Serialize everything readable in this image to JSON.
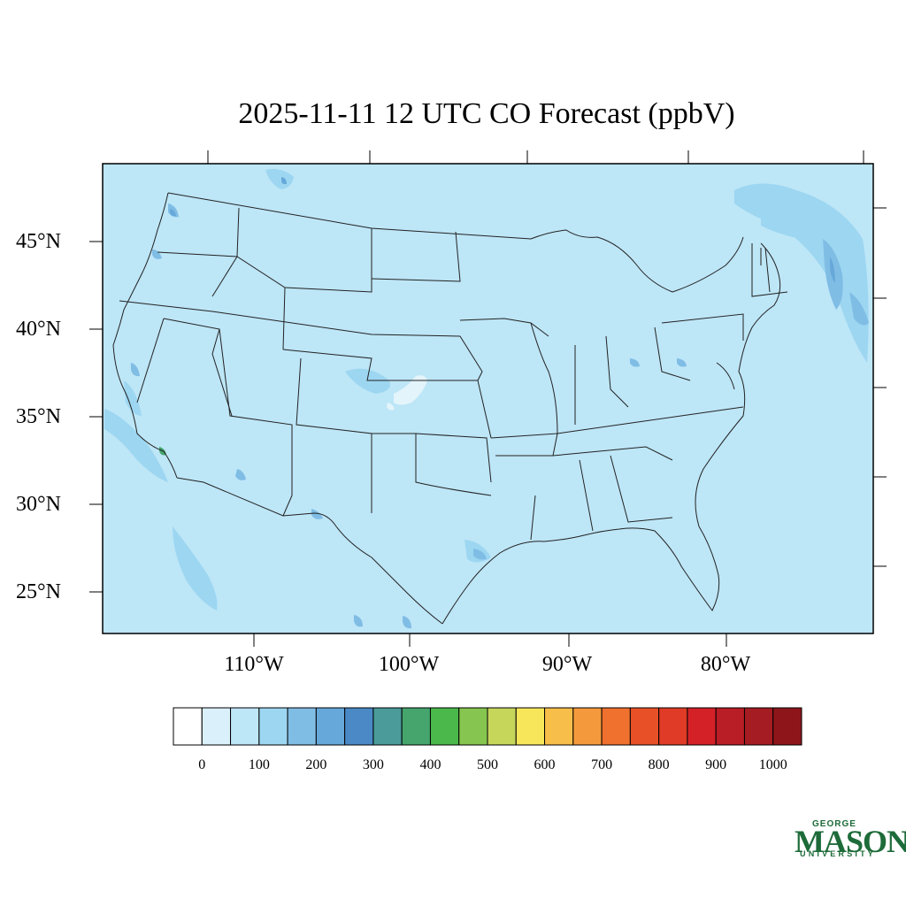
{
  "title": "2025-11-11 12 UTC CO Forecast (ppbV)",
  "lat_labels": [
    "45°N",
    "40°N",
    "35°N",
    "30°N",
    "25°N"
  ],
  "lon_labels": [
    "110°W",
    "100°W",
    "90°W",
    "80°W"
  ],
  "colorbar": {
    "colors": [
      "#ffffff",
      "#daf0fa",
      "#bde6f7",
      "#9dd6f1",
      "#80bde5",
      "#66a8d9",
      "#4a89c6",
      "#4a9b9a",
      "#45a56d",
      "#4ab84a",
      "#86c54f",
      "#c6d65a",
      "#f7e65a",
      "#f7be4a",
      "#f59a3c",
      "#f0702e",
      "#e85128",
      "#df3b26",
      "#d42127",
      "#b91d26",
      "#a51c22",
      "#8e161b"
    ],
    "tick_labels": [
      "0",
      "100",
      "200",
      "300",
      "400",
      "500",
      "600",
      "700",
      "800",
      "900",
      "1000"
    ]
  },
  "map_colors": {
    "background": "#bde6f7",
    "plume_light": "#9dd6f1",
    "plume_mid": "#80bde5",
    "plume_dark": "#66a8d9",
    "hotspot": "#45a56d",
    "low": "#e4f4fb"
  },
  "logo": {
    "line1": "GEORGE",
    "line2": "MASON",
    "line3": "UNIVERSITY"
  }
}
